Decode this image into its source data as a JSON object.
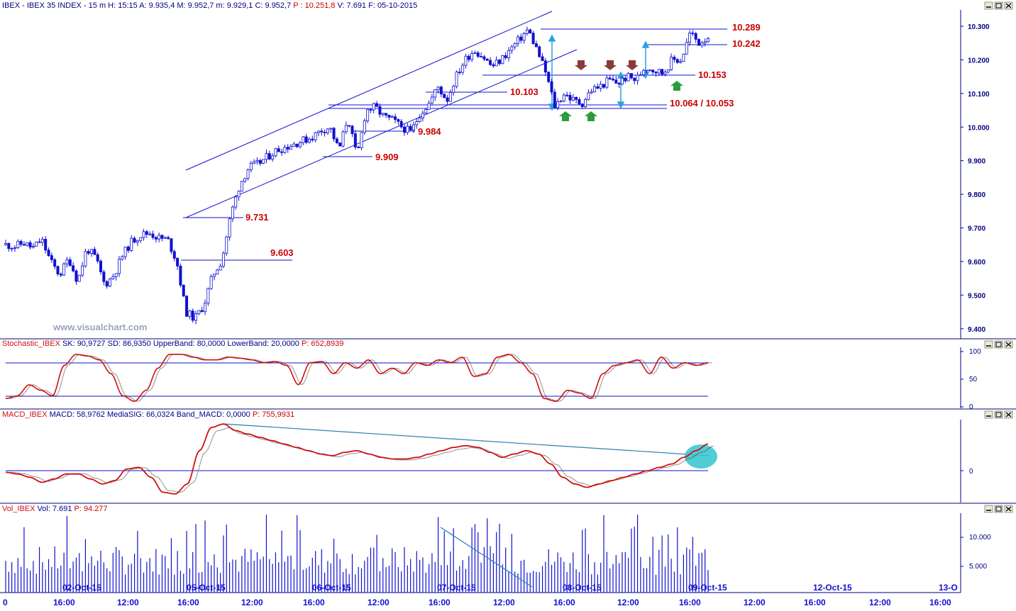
{
  "main_header": "IBEX - IBEX 35 INDEX - 15 m  H: 15:15  A: 9.935,4  M: 9.952,7  m: 9.929,1  C: 9.952,7",
  "main_header_price": "P : 10.251,8",
  "main_header_tail": "V: 7.691  F: 05-10-2015",
  "watermark": "www.visualchart.com",
  "price_axis_labels": [
    "10.300",
    "10.200",
    "10.100",
    "10.000",
    "9.900",
    "9.800",
    "9.700",
    "9.600",
    "9.500",
    "9.400"
  ],
  "levels": [
    {
      "label": "10.289",
      "price": 10.289
    },
    {
      "label": "10.242",
      "price": 10.242
    },
    {
      "label": "10.153",
      "price": 10.153
    },
    {
      "label": "10.103",
      "price": 10.103
    },
    {
      "label": "10.064 / 10.053",
      "price": 10.064
    },
    {
      "label": "9.984",
      "price": 9.984
    },
    {
      "label": "9.909",
      "price": 9.909
    },
    {
      "label": "9.731",
      "price": 9.731
    },
    {
      "label": "9.603",
      "price": 9.603
    }
  ],
  "stoch": {
    "header_name": "Stochastic_IBEX",
    "header_values": "SK: 90,9727  SD: 86,9350  UpperBand: 80,0000  LowerBand: 20,0000",
    "header_price": "P: 652,8939",
    "axis_labels": [
      "100",
      "50",
      "0"
    ],
    "upper": 80,
    "lower": 20
  },
  "macd": {
    "header_name": "MACD_IBEX",
    "header_values": "MACD: 58,9762  MediaSIG: 66,0324  Band_MACD: 0,0000",
    "header_price": "P: 755,9931",
    "axis_labels": [
      "0"
    ]
  },
  "volume": {
    "header_name": "Vol_IBEX",
    "header_values": "Vol: 7.691",
    "header_price": "P: 94.277",
    "axis_labels": [
      "10.000",
      "5.000"
    ]
  },
  "date_labels": [
    "02-Oct-15",
    "05-Oct-15",
    "06-Oct-15",
    "07-Oct-15",
    "08-Oct-15",
    "09-Oct-15",
    "12-Oct-15",
    "13-O"
  ],
  "time_labels": [
    "0",
    "16:00",
    "12:00",
    "16:00",
    "12:00",
    "16:00",
    "12:00",
    "16:00",
    "12:00",
    "16:00",
    "12:00",
    "16:00",
    "12:00",
    "16:00",
    "12:00",
    "16:00"
  ],
  "colors": {
    "candle": "#1010d0",
    "level_label": "#cc0000",
    "support": "#2a9d3a",
    "resistance": "#8b3a3a",
    "measure": "#2aa0e0",
    "stoch_k": "#d01010",
    "macd": "#d01010",
    "highlight": "#33c4d0"
  },
  "chart_data": {
    "type": "candlestick",
    "title": "IBEX - IBEX 35 INDEX - 15 m",
    "instrument": "IBEX 35 INDEX",
    "timeframe": "15 m",
    "ylim": [
      9.38,
      10.36
    ],
    "x_ticks": [
      "02-Oct-15",
      "05-Oct-15",
      "06-Oct-15",
      "07-Oct-15",
      "08-Oct-15",
      "09-Oct-15",
      "12-Oct-15",
      "13-O"
    ],
    "close_path": [
      9.65,
      9.645,
      9.655,
      9.64,
      9.665,
      9.6,
      9.56,
      9.61,
      9.54,
      9.64,
      9.61,
      9.53,
      9.56,
      9.62,
      9.66,
      9.68,
      9.685,
      9.67,
      9.665,
      9.6,
      9.45,
      9.43,
      9.47,
      9.56,
      9.603,
      9.74,
      9.83,
      9.88,
      9.89,
      9.91,
      9.93,
      9.94,
      9.95,
      9.96,
      9.97,
      9.99,
      10.0,
      9.93,
      10.03,
      9.909,
      10.05,
      10.06,
      10.03,
      10.02,
      10.0,
      9.984,
      10.04,
      10.07,
      10.12,
      10.08,
      10.15,
      10.2,
      10.23,
      10.21,
      10.18,
      10.2,
      10.23,
      10.26,
      10.29,
      10.23,
      10.16,
      10.06,
      10.1,
      10.08,
      10.07,
      10.11,
      10.12,
      10.14,
      10.13,
      10.15,
      10.14,
      10.18,
      10.17,
      10.16,
      10.2,
      10.2,
      10.28,
      10.25,
      10.27
    ],
    "horizontal_levels": [
      10.289,
      10.242,
      10.153,
      10.103,
      10.064,
      10.053,
      9.984,
      9.909,
      9.731,
      9.603
    ],
    "stochastic": {
      "SK": 90.9727,
      "SD": 86.935,
      "UpperBand": 80,
      "LowerBand": 20
    },
    "macd": {
      "MACD": 58.9762,
      "MediaSIG": 66.0324,
      "Band_MACD": 0
    },
    "volume_last": 7691
  }
}
